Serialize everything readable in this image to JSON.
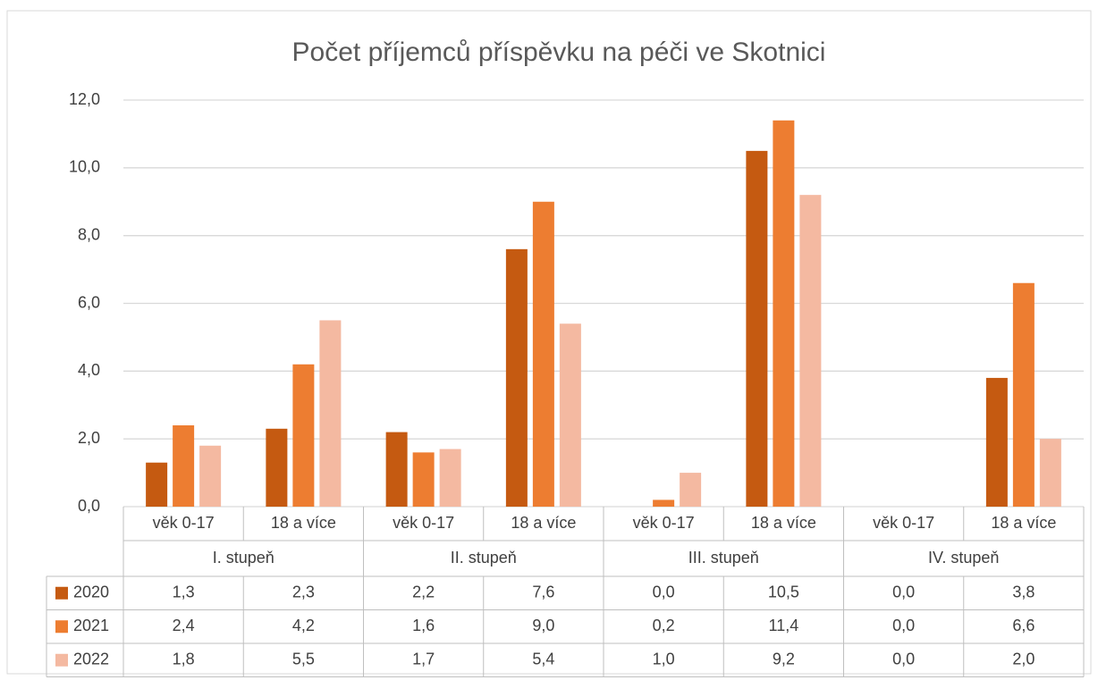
{
  "chart_data": {
    "type": "bar",
    "title": "Počet příjemců příspěvku na péči ve Skotnici",
    "categories": [
      "věk 0-17",
      "18 a více",
      "věk 0-17",
      "18 a více",
      "věk 0-17",
      "18 a více",
      "věk 0-17",
      "18 a více"
    ],
    "groups": [
      "I. stupeň",
      "II. stupeň",
      "III. stupeň",
      "IV. stupeň"
    ],
    "series": [
      {
        "name": "2020",
        "color": "#c55a11",
        "values": [
          1.3,
          2.3,
          2.2,
          7.6,
          0.0,
          10.5,
          0.0,
          3.8
        ],
        "value_labels": [
          "1,3",
          "2,3",
          "2,2",
          "7,6",
          "0,0",
          "10,5",
          "0,0",
          "3,8"
        ]
      },
      {
        "name": "2021",
        "color": "#ed7d31",
        "values": [
          2.4,
          4.2,
          1.6,
          9.0,
          0.2,
          11.4,
          0.0,
          6.6
        ],
        "value_labels": [
          "2,4",
          "4,2",
          "1,6",
          "9,0",
          "0,2",
          "11,4",
          "0,0",
          "6,6"
        ]
      },
      {
        "name": "2022",
        "color": "#f4b9a1",
        "values": [
          1.8,
          5.5,
          1.7,
          5.4,
          1.0,
          9.2,
          0.0,
          2.0
        ],
        "value_labels": [
          "1,8",
          "5,5",
          "1,7",
          "5,4",
          "1,0",
          "9,2",
          "0,0",
          "2,0"
        ]
      }
    ],
    "ylim": [
      0,
      12
    ],
    "yticks": [
      {
        "value": 0,
        "label": "0,0"
      },
      {
        "value": 2,
        "label": "2,0"
      },
      {
        "value": 4,
        "label": "4,0"
      },
      {
        "value": 6,
        "label": "6,0"
      },
      {
        "value": 8,
        "label": "8,0"
      },
      {
        "value": 10,
        "label": "10,0"
      },
      {
        "value": 12,
        "label": "12,0"
      }
    ],
    "grid": true
  }
}
